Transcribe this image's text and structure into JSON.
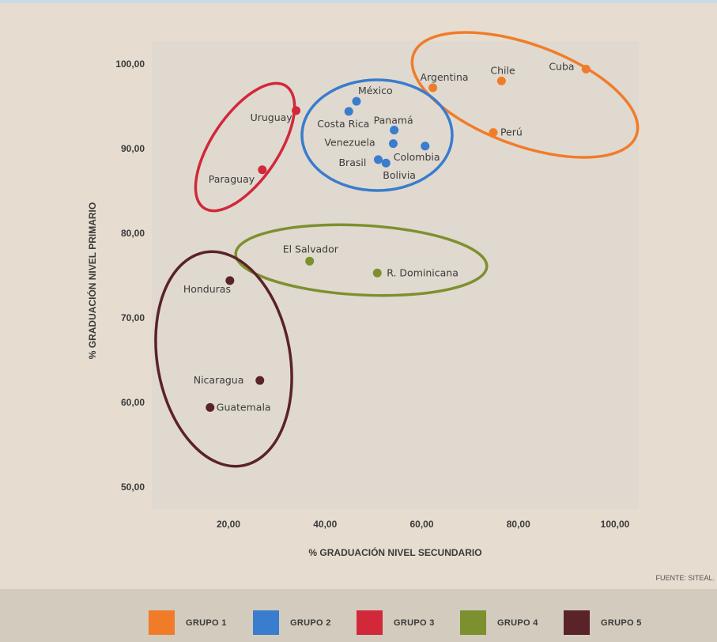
{
  "chart_data": {
    "type": "scatter",
    "xlabel": "% GRADUACIÓN NIVEL SECUNDARIO",
    "ylabel": "% GRADUACIÓN NIVEL PRIMARIO",
    "xlim": [
      5,
      105
    ],
    "ylim": [
      46,
      103
    ],
    "xticks": [
      "20,00",
      "40,00",
      "60,00",
      "80,00",
      "100,00"
    ],
    "xtick_values": [
      20,
      40,
      60,
      80,
      100
    ],
    "yticks": [
      "50,00",
      "60,00",
      "70,00",
      "80,00",
      "90,00",
      "100,00"
    ],
    "ytick_values": [
      50,
      60,
      70,
      80,
      90,
      100
    ],
    "grid": false,
    "legend_position": "bottom",
    "source": "FUENTE: SITEAL.",
    "groups": [
      {
        "name": "GRUPO 1",
        "color": "#f07c2a",
        "points": [
          {
            "label": "Argentina",
            "x": 62.3,
            "y": 97.2
          },
          {
            "label": "Chile",
            "x": 76.5,
            "y": 98.0
          },
          {
            "label": "Cuba",
            "x": 94.0,
            "y": 99.4
          },
          {
            "label": "Perú",
            "x": 74.8,
            "y": 91.9
          }
        ]
      },
      {
        "name": "GRUPO 2",
        "color": "#3a7ccd",
        "points": [
          {
            "label": "México",
            "x": 46.5,
            "y": 95.6
          },
          {
            "label": "Costa Rica",
            "x": 44.9,
            "y": 94.4
          },
          {
            "label": "Panamá",
            "x": 54.3,
            "y": 92.2
          },
          {
            "label": "Venezuela",
            "x": 54.1,
            "y": 90.6
          },
          {
            "label": "Colombia",
            "x": 60.7,
            "y": 90.3
          },
          {
            "label": "Brasil",
            "x": 51.0,
            "y": 88.7
          },
          {
            "label": "Bolivia",
            "x": 52.6,
            "y": 88.3
          }
        ]
      },
      {
        "name": "GRUPO 3",
        "color": "#d1283a",
        "points": [
          {
            "label": "Uruguay",
            "x": 34.0,
            "y": 94.5
          },
          {
            "label": "Paraguay",
            "x": 27.0,
            "y": 87.5
          }
        ]
      },
      {
        "name": "GRUPO 4",
        "color": "#7d902f",
        "points": [
          {
            "label": "El Salvador",
            "x": 36.8,
            "y": 76.7
          },
          {
            "label": "R. Dominicana",
            "x": 50.8,
            "y": 75.3
          }
        ]
      },
      {
        "name": "GRUPO 5",
        "color": "#5a2229",
        "points": [
          {
            "label": "Honduras",
            "x": 20.3,
            "y": 74.4
          },
          {
            "label": "Nicaragua",
            "x": 26.5,
            "y": 62.6
          },
          {
            "label": "Guatemala",
            "x": 16.2,
            "y": 59.4
          }
        ]
      }
    ]
  }
}
